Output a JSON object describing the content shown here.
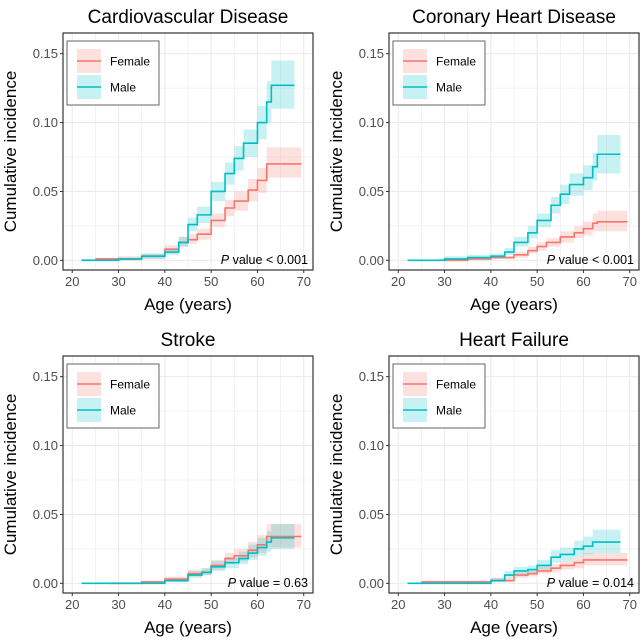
{
  "colors": {
    "Female": "#F8766D",
    "Male": "#00BFC4"
  },
  "chart_data": [
    {
      "type": "line",
      "title": "Cardiovascular Disease",
      "xlabel": "Age (years)",
      "ylabel": "Cumulative incidence",
      "xlim": [
        18,
        72
      ],
      "ylim": [
        -0.007,
        0.165
      ],
      "xticks": [
        20,
        30,
        40,
        50,
        60,
        70
      ],
      "yticks": [
        "0.00",
        "0.05",
        "0.10",
        "0.15"
      ],
      "grid": true,
      "legend": "top-left",
      "annotation": {
        "italic": "P",
        "text": " value < 0.001"
      },
      "series": [
        {
          "name": "Female",
          "points": [
            [
              25,
              0.001,
              0,
              0.002
            ],
            [
              30,
              0.001,
              0,
              0.003
            ],
            [
              35,
              0.003,
              0.001,
              0.005
            ],
            [
              40,
              0.008,
              0.005,
              0.011
            ],
            [
              43,
              0.013,
              0.01,
              0.017
            ],
            [
              45,
              0.015,
              0.012,
              0.019
            ],
            [
              47,
              0.019,
              0.015,
              0.023
            ],
            [
              50,
              0.029,
              0.024,
              0.034
            ],
            [
              53,
              0.038,
              0.032,
              0.044
            ],
            [
              55,
              0.043,
              0.036,
              0.05
            ],
            [
              58,
              0.051,
              0.043,
              0.059
            ],
            [
              60,
              0.058,
              0.049,
              0.067
            ],
            [
              62,
              0.07,
              0.06,
              0.082
            ],
            [
              69.5,
              0.07,
              0.06,
              0.082
            ]
          ]
        },
        {
          "name": "Male",
          "points": [
            [
              22,
              0,
              0,
              0.001
            ],
            [
              30,
              0.001,
              0,
              0.002
            ],
            [
              35,
              0.003,
              0.001,
              0.005
            ],
            [
              40,
              0.006,
              0.004,
              0.009
            ],
            [
              43,
              0.013,
              0.01,
              0.017
            ],
            [
              45,
              0.026,
              0.021,
              0.031
            ],
            [
              47,
              0.033,
              0.027,
              0.039
            ],
            [
              50,
              0.05,
              0.043,
              0.057
            ],
            [
              53,
              0.063,
              0.055,
              0.071
            ],
            [
              55,
              0.074,
              0.065,
              0.083
            ],
            [
              57,
              0.085,
              0.075,
              0.095
            ],
            [
              60,
              0.1,
              0.088,
              0.112
            ],
            [
              62,
              0.115,
              0.1,
              0.13
            ],
            [
              63,
              0.127,
              0.11,
              0.145
            ],
            [
              68,
              0.127,
              0.11,
              0.145
            ]
          ]
        }
      ]
    },
    {
      "type": "line",
      "title": "Coronary Heart Disease",
      "xlabel": "Age (years)",
      "ylabel": "Cumulative incidence",
      "xlim": [
        18,
        72
      ],
      "ylim": [
        -0.007,
        0.165
      ],
      "xticks": [
        20,
        30,
        40,
        50,
        60,
        70
      ],
      "yticks": [
        "0.00",
        "0.05",
        "0.10",
        "0.15"
      ],
      "grid": true,
      "legend": "top-left",
      "annotation": {
        "italic": "P",
        "text": " value < 0.001"
      },
      "series": [
        {
          "name": "Female",
          "points": [
            [
              30,
              0,
              0,
              0.001
            ],
            [
              35,
              0.001,
              0,
              0.002
            ],
            [
              40,
              0.002,
              0.001,
              0.003
            ],
            [
              45,
              0.004,
              0.002,
              0.006
            ],
            [
              48,
              0.007,
              0.005,
              0.01
            ],
            [
              50,
              0.01,
              0.007,
              0.013
            ],
            [
              52,
              0.013,
              0.01,
              0.016
            ],
            [
              55,
              0.017,
              0.013,
              0.021
            ],
            [
              58,
              0.02,
              0.016,
              0.025
            ],
            [
              60,
              0.023,
              0.018,
              0.028
            ],
            [
              62,
              0.027,
              0.021,
              0.034
            ],
            [
              63,
              0.028,
              0.021,
              0.036
            ],
            [
              69.5,
              0.028,
              0.021,
              0.036
            ]
          ]
        },
        {
          "name": "Male",
          "points": [
            [
              22,
              0,
              0,
              0
            ],
            [
              29,
              0,
              0,
              0.001
            ],
            [
              30,
              0.001,
              0,
              0.003
            ],
            [
              35,
              0.002,
              0.001,
              0.004
            ],
            [
              40,
              0.003,
              0.002,
              0.005
            ],
            [
              43,
              0.006,
              0.004,
              0.009
            ],
            [
              45,
              0.013,
              0.01,
              0.017
            ],
            [
              48,
              0.02,
              0.016,
              0.025
            ],
            [
              50,
              0.029,
              0.024,
              0.034
            ],
            [
              53,
              0.04,
              0.034,
              0.046
            ],
            [
              55,
              0.048,
              0.041,
              0.055
            ],
            [
              57,
              0.055,
              0.047,
              0.063
            ],
            [
              60,
              0.06,
              0.051,
              0.069
            ],
            [
              62,
              0.068,
              0.058,
              0.078
            ],
            [
              63,
              0.077,
              0.063,
              0.091
            ],
            [
              68,
              0.077,
              0.063,
              0.091
            ]
          ]
        }
      ]
    },
    {
      "type": "line",
      "title": "Stroke",
      "xlabel": "Age (years)",
      "ylabel": "Cumulative incidence",
      "xlim": [
        18,
        72
      ],
      "ylim": [
        -0.007,
        0.165
      ],
      "xticks": [
        20,
        30,
        40,
        50,
        60,
        70
      ],
      "yticks": [
        "0.00",
        "0.05",
        "0.10",
        "0.15"
      ],
      "grid": true,
      "legend": "top-left",
      "annotation": {
        "italic": "P",
        "text": " value = 0.63"
      },
      "series": [
        {
          "name": "Female",
          "points": [
            [
              28,
              0,
              0,
              0.001
            ],
            [
              35,
              0.001,
              0,
              0.002
            ],
            [
              40,
              0.003,
              0.001,
              0.005
            ],
            [
              45,
              0.007,
              0.005,
              0.01
            ],
            [
              48,
              0.008,
              0.006,
              0.011
            ],
            [
              50,
              0.013,
              0.01,
              0.017
            ],
            [
              53,
              0.018,
              0.014,
              0.022
            ],
            [
              55,
              0.02,
              0.016,
              0.025
            ],
            [
              58,
              0.024,
              0.019,
              0.03
            ],
            [
              60,
              0.028,
              0.022,
              0.035
            ],
            [
              62,
              0.034,
              0.026,
              0.043
            ],
            [
              69.5,
              0.034,
              0.026,
              0.043
            ]
          ]
        },
        {
          "name": "Male",
          "points": [
            [
              22,
              0,
              0,
              0
            ],
            [
              38,
              0,
              0,
              0.001
            ],
            [
              40,
              0.002,
              0.001,
              0.004
            ],
            [
              45,
              0.006,
              0.004,
              0.009
            ],
            [
              48,
              0.008,
              0.006,
              0.011
            ],
            [
              50,
              0.012,
              0.009,
              0.016
            ],
            [
              53,
              0.015,
              0.011,
              0.019
            ],
            [
              56,
              0.018,
              0.014,
              0.023
            ],
            [
              58,
              0.022,
              0.017,
              0.028
            ],
            [
              60,
              0.026,
              0.02,
              0.033
            ],
            [
              62,
              0.03,
              0.023,
              0.038
            ],
            [
              63,
              0.033,
              0.025,
              0.043
            ],
            [
              68,
              0.033,
              0.025,
              0.043
            ]
          ]
        }
      ]
    },
    {
      "type": "line",
      "title": "Heart Failure",
      "xlabel": "Age (years)",
      "ylabel": "Cumulative incidence",
      "xlim": [
        18,
        72
      ],
      "ylim": [
        -0.007,
        0.165
      ],
      "xticks": [
        20,
        30,
        40,
        50,
        60,
        70
      ],
      "yticks": [
        "0.00",
        "0.05",
        "0.10",
        "0.15"
      ],
      "grid": true,
      "legend": "top-left",
      "annotation": {
        "italic": "P",
        "text": " value = 0.014"
      },
      "series": [
        {
          "name": "Female",
          "points": [
            [
              25,
              0.001,
              0,
              0.002
            ],
            [
              33,
              0.001,
              0,
              0.002
            ],
            [
              40,
              0.002,
              0.001,
              0.004
            ],
            [
              45,
              0.006,
              0.004,
              0.008
            ],
            [
              48,
              0.007,
              0.005,
              0.009
            ],
            [
              50,
              0.009,
              0.007,
              0.012
            ],
            [
              53,
              0.011,
              0.008,
              0.014
            ],
            [
              55,
              0.013,
              0.01,
              0.016
            ],
            [
              58,
              0.015,
              0.011,
              0.019
            ],
            [
              60,
              0.017,
              0.013,
              0.022
            ],
            [
              69.5,
              0.017,
              0.013,
              0.022
            ]
          ]
        },
        {
          "name": "Male",
          "points": [
            [
              22,
              0,
              0,
              0
            ],
            [
              34,
              0,
              0,
              0.001
            ],
            [
              40,
              0.002,
              0.001,
              0.004
            ],
            [
              43,
              0.006,
              0.004,
              0.009
            ],
            [
              45,
              0.009,
              0.006,
              0.012
            ],
            [
              48,
              0.01,
              0.007,
              0.013
            ],
            [
              50,
              0.013,
              0.01,
              0.017
            ],
            [
              53,
              0.019,
              0.015,
              0.024
            ],
            [
              55,
              0.021,
              0.016,
              0.026
            ],
            [
              58,
              0.025,
              0.019,
              0.031
            ],
            [
              60,
              0.027,
              0.021,
              0.034
            ],
            [
              62,
              0.03,
              0.022,
              0.039
            ],
            [
              68,
              0.03,
              0.022,
              0.039
            ]
          ]
        }
      ]
    }
  ]
}
